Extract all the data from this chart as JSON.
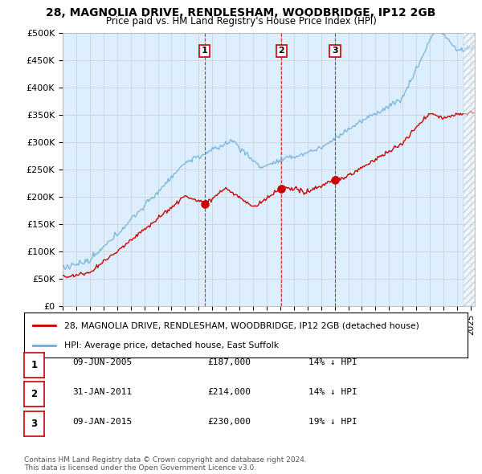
{
  "title_line1": "28, MAGNOLIA DRIVE, RENDLESHAM, WOODBRIDGE, IP12 2GB",
  "title_line2": "Price paid vs. HM Land Registry's House Price Index (HPI)",
  "ylim": [
    0,
    500000
  ],
  "yticks": [
    0,
    50000,
    100000,
    150000,
    200000,
    250000,
    300000,
    350000,
    400000,
    450000,
    500000
  ],
  "ytick_labels": [
    "£0",
    "£50K",
    "£100K",
    "£150K",
    "£200K",
    "£250K",
    "£300K",
    "£350K",
    "£400K",
    "£450K",
    "£500K"
  ],
  "hpi_color": "#6baed6",
  "price_color": "#cc0000",
  "vline_color": "#cc0000",
  "grid_color": "#cccccc",
  "bg_color": "#ffffff",
  "plot_bg_color": "#ddeeff",
  "transactions": [
    {
      "label": "1",
      "date_str": "09-JUN-2005",
      "price": 187000,
      "hpi_pct": "14% ↓ HPI",
      "x_year": 2005.44
    },
    {
      "label": "2",
      "date_str": "31-JAN-2011",
      "price": 214000,
      "hpi_pct": "14% ↓ HPI",
      "x_year": 2011.08
    },
    {
      "label": "3",
      "date_str": "09-JAN-2015",
      "price": 230000,
      "hpi_pct": "19% ↓ HPI",
      "x_year": 2015.02
    }
  ],
  "legend_label_price": "28, MAGNOLIA DRIVE, RENDLESHAM, WOODBRIDGE, IP12 2GB (detached house)",
  "legend_label_hpi": "HPI: Average price, detached house, East Suffolk",
  "footer_line1": "Contains HM Land Registry data © Crown copyright and database right 2024.",
  "footer_line2": "This data is licensed under the Open Government Licence v3.0.",
  "xlim_start": 1995.0,
  "xlim_end": 2025.3
}
